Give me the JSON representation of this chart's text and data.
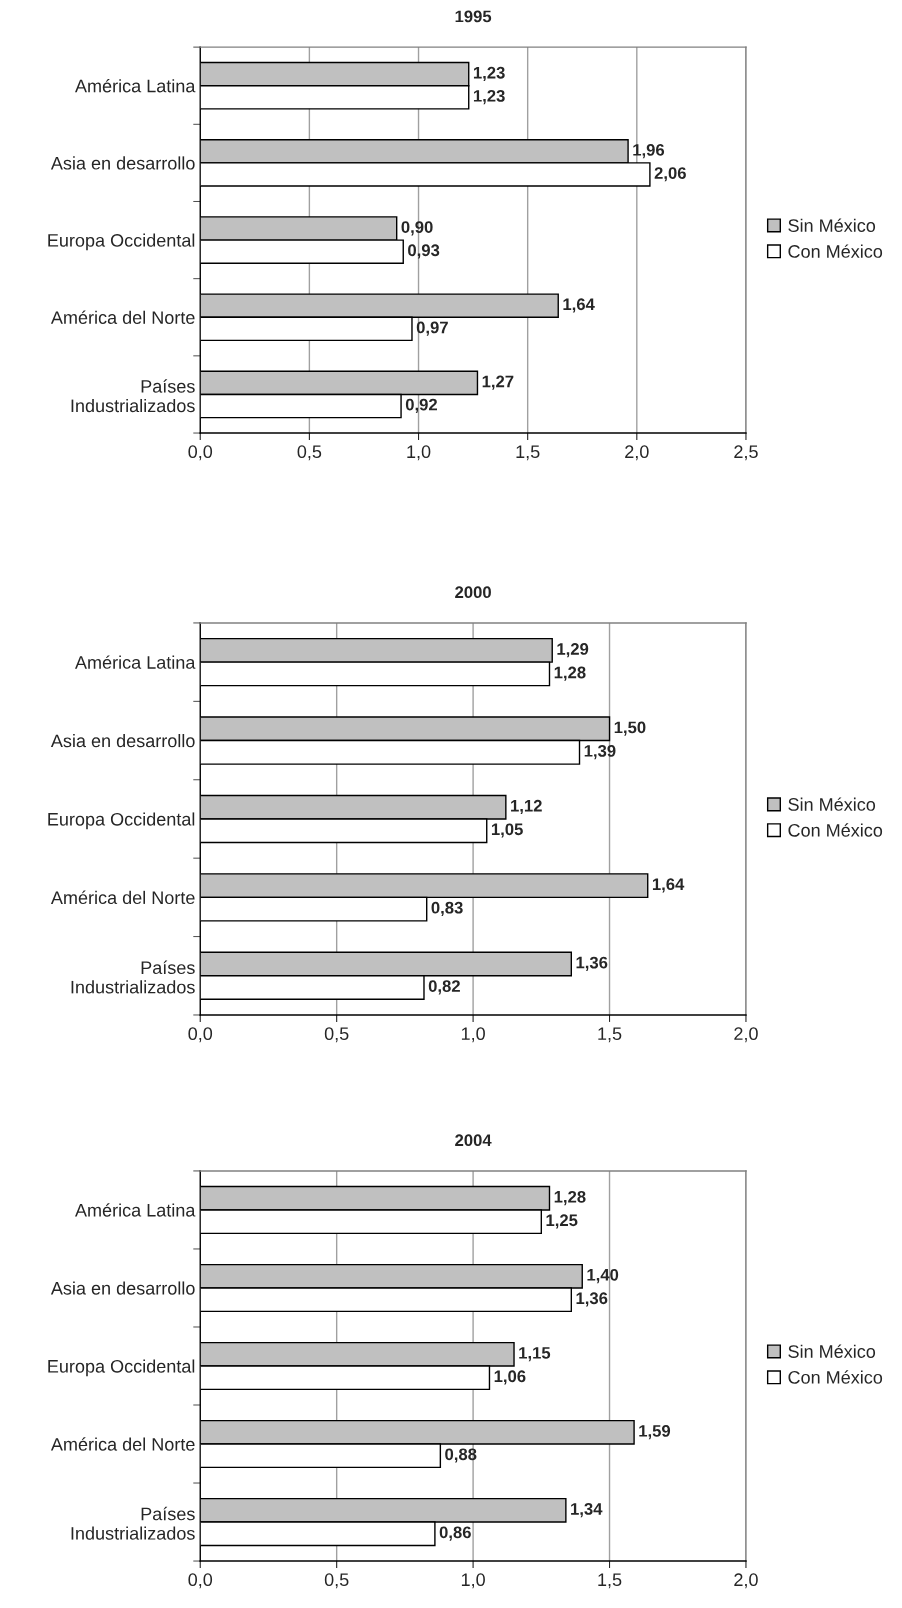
{
  "chart_data": [
    {
      "type": "bar",
      "orientation": "horizontal",
      "title": "1995",
      "categories": [
        "América Latina",
        "Asia en desarrollo",
        "Europa Occidental",
        "América del Norte",
        "Países\nIndustrializados"
      ],
      "series": [
        {
          "name": "Sin México",
          "color": "#c0c0c0",
          "values": [
            1.23,
            1.96,
            0.9,
            1.64,
            1.27
          ],
          "value_labels": [
            "1,23",
            "1,96",
            "0,90",
            "1,64",
            "1,27"
          ]
        },
        {
          "name": "Con México",
          "color": "#ffffff",
          "values": [
            1.23,
            2.06,
            0.93,
            0.97,
            0.92
          ],
          "value_labels": [
            "1,23",
            "2,06",
            "0,93",
            "0,97",
            "0,92"
          ]
        }
      ],
      "xlim": [
        0,
        2.5
      ],
      "xticks": [
        {
          "value": 0,
          "label": "0,0"
        },
        {
          "value": 0.5,
          "label": "0,5"
        },
        {
          "value": 1.0,
          "label": "1,0"
        },
        {
          "value": 1.5,
          "label": "1,5"
        },
        {
          "value": 2.0,
          "label": "2,0"
        },
        {
          "value": 2.5,
          "label": "2,5"
        }
      ],
      "grid": "x",
      "legend": "right"
    },
    {
      "type": "bar",
      "orientation": "horizontal",
      "title": "2000",
      "categories": [
        "América Latina",
        "Asia en desarrollo",
        "Europa Occidental",
        "América del Norte",
        "Países\nIndustrializados"
      ],
      "series": [
        {
          "name": "Sin México",
          "color": "#c0c0c0",
          "values": [
            1.29,
            1.5,
            1.12,
            1.64,
            1.36
          ],
          "value_labels": [
            "1,29",
            "1,50",
            "1,12",
            "1,64",
            "1,36"
          ]
        },
        {
          "name": "Con México",
          "color": "#ffffff",
          "values": [
            1.28,
            1.39,
            1.05,
            0.83,
            0.82
          ],
          "value_labels": [
            "1,28",
            "1,39",
            "1,05",
            "0,83",
            "0,82"
          ]
        }
      ],
      "xlim": [
        0,
        2.0
      ],
      "xticks": [
        {
          "value": 0,
          "label": "0,0"
        },
        {
          "value": 0.5,
          "label": "0,5"
        },
        {
          "value": 1.0,
          "label": "1,0"
        },
        {
          "value": 1.5,
          "label": "1,5"
        },
        {
          "value": 2.0,
          "label": "2,0"
        }
      ],
      "grid": "x",
      "legend": "right"
    },
    {
      "type": "bar",
      "orientation": "horizontal",
      "title": "2004",
      "categories": [
        "América Latina",
        "Asia en desarrollo",
        "Europa Occidental",
        "América del Norte",
        "Países\nIndustrializados"
      ],
      "series": [
        {
          "name": "Sin México",
          "color": "#c0c0c0",
          "values": [
            1.28,
            1.4,
            1.15,
            1.59,
            1.34
          ],
          "value_labels": [
            "1,28",
            "1,40",
            "1,15",
            "1,59",
            "1,34"
          ]
        },
        {
          "name": "Con México",
          "color": "#ffffff",
          "values": [
            1.25,
            1.36,
            1.06,
            0.88,
            0.86
          ],
          "value_labels": [
            "1,25",
            "1,36",
            "1,06",
            "0,88",
            "0,86"
          ]
        }
      ],
      "xlim": [
        0,
        2.0
      ],
      "xticks": [
        {
          "value": 0,
          "label": "0,0"
        },
        {
          "value": 0.5,
          "label": "0,5"
        },
        {
          "value": 1.0,
          "label": "1,0"
        },
        {
          "value": 1.5,
          "label": "1,5"
        },
        {
          "value": 2.0,
          "label": "2,0"
        }
      ],
      "grid": "x",
      "legend": "right"
    }
  ]
}
